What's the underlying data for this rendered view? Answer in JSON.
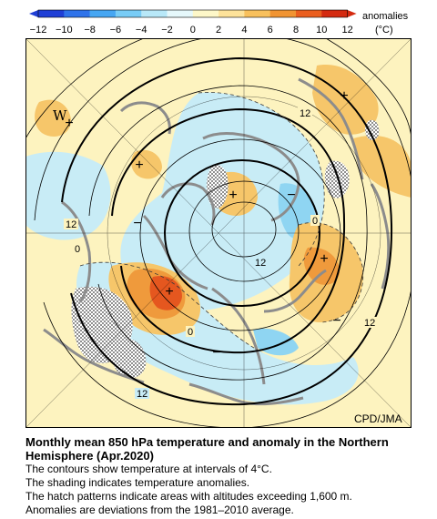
{
  "colorbar": {
    "ticks": [
      "−12",
      "−10",
      "−8",
      "−6",
      "−4",
      "−2",
      "0",
      "2",
      "4",
      "6",
      "8",
      "10",
      "12"
    ],
    "colors": [
      "#1f3fd6",
      "#2f73ea",
      "#46a6f2",
      "#78ccf6",
      "#b8e8f8",
      "#e6f8fb",
      "#fdf7c8",
      "#fde29a",
      "#f8c05c",
      "#f19432",
      "#ea5e1e",
      "#d42a10"
    ],
    "unit_line1": "anomalies",
    "unit_line2": "(°C)"
  },
  "map": {
    "contour_labels": [
      "12",
      "12",
      "12",
      "12",
      "12",
      "0",
      "0",
      "0"
    ],
    "anomaly_signs": [
      "+",
      "+",
      "+",
      "+",
      "+",
      "+",
      "−",
      "−",
      "−",
      "−"
    ],
    "wind_marker": "W",
    "credit": "CPD/JMA",
    "colors": {
      "background": "#fdf3bf",
      "warm": "#f6c66a",
      "warmer": "#ef9a3c",
      "hot": "#e5571f",
      "cool": "#c8ecf6",
      "cooler": "#8fd5f2",
      "coast": "#8c8c8c",
      "hatch": "#9a9a9a"
    }
  },
  "caption": {
    "title": "Monthly mean 850 hPa temperature and anomaly in the Northern Hemisphere (Apr.2020)",
    "lines": [
      "The contours show temperature at intervals of 4°C.",
      "The shading indicates temperature anomalies.",
      "The hatch patterns indicate areas with altitudes exceeding 1,600 m.",
      "Anomalies are deviations from the 1981–2010 average."
    ]
  }
}
